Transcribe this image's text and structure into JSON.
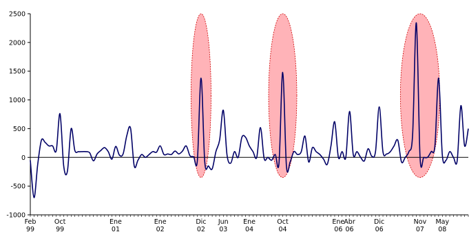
{
  "chart_data": {
    "type": "line",
    "title": "",
    "xlabel": "",
    "ylabel": "",
    "ylim": [
      -1000,
      2500
    ],
    "yticks": [
      -1000,
      -500,
      0,
      500,
      1000,
      1500,
      2000,
      2500
    ],
    "x_range": [
      "1999-02",
      "2008-12"
    ],
    "x_tick_labels": [
      {
        "text": "Feb",
        "sub": "99",
        "date": "1999-02"
      },
      {
        "text": "Oct",
        "sub": "99",
        "date": "1999-10"
      },
      {
        "text": "Ene",
        "sub": "01",
        "date": "2001-01"
      },
      {
        "text": "Ene",
        "sub": "02",
        "date": "2002-01"
      },
      {
        "text": "Dic",
        "sub": "02",
        "date": "2002-12"
      },
      {
        "text": "Jun",
        "sub": "03",
        "date": "2003-06"
      },
      {
        "text": "Ene",
        "sub": "04",
        "date": "2004-01"
      },
      {
        "text": "Oct",
        "sub": "04",
        "date": "2004-10"
      },
      {
        "text": "Ene",
        "sub": "06",
        "date": "2006-01"
      },
      {
        "text": "Abr",
        "sub": "06",
        "date": "2006-04"
      },
      {
        "text": "Dic",
        "sub": "06",
        "date": "2006-12"
      },
      {
        "text": "Nov",
        "sub": "07",
        "date": "2007-11"
      },
      {
        "text": "May",
        "sub": "08",
        "date": "2008-05"
      }
    ],
    "series": [
      {
        "color": "#000066",
        "points": [
          [
            "1999-02",
            -50
          ],
          [
            "1999-03",
            -700
          ],
          [
            "1999-04",
            -120
          ],
          [
            "1999-05",
            300
          ],
          [
            "1999-06",
            260
          ],
          [
            "1999-07",
            200
          ],
          [
            "1999-08",
            200
          ],
          [
            "1999-09",
            120
          ],
          [
            "1999-10",
            760
          ],
          [
            "1999-11",
            -150
          ],
          [
            "1999-12",
            -240
          ],
          [
            "2000-01",
            500
          ],
          [
            "2000-02",
            120
          ],
          [
            "2000-03",
            100
          ],
          [
            "2000-04",
            100
          ],
          [
            "2000-05",
            100
          ],
          [
            "2000-06",
            80
          ],
          [
            "2000-07",
            -60
          ],
          [
            "2000-08",
            60
          ],
          [
            "2000-09",
            120
          ],
          [
            "2000-10",
            170
          ],
          [
            "2000-11",
            100
          ],
          [
            "2000-12",
            -30
          ],
          [
            "2001-01",
            190
          ],
          [
            "2001-02",
            40
          ],
          [
            "2001-03",
            60
          ],
          [
            "2001-04",
            380
          ],
          [
            "2001-05",
            510
          ],
          [
            "2001-06",
            -150
          ],
          [
            "2001-07",
            -50
          ],
          [
            "2001-08",
            50
          ],
          [
            "2001-09",
            0
          ],
          [
            "2001-10",
            50
          ],
          [
            "2001-11",
            100
          ],
          [
            "2001-12",
            90
          ],
          [
            "2002-01",
            200
          ],
          [
            "2002-02",
            50
          ],
          [
            "2002-03",
            60
          ],
          [
            "2002-04",
            50
          ],
          [
            "2002-05",
            110
          ],
          [
            "2002-06",
            60
          ],
          [
            "2002-07",
            110
          ],
          [
            "2002-08",
            200
          ],
          [
            "2002-09",
            30
          ],
          [
            "2002-10",
            10
          ],
          [
            "2002-11",
            -60
          ],
          [
            "2002-12",
            1380
          ],
          [
            "2003-01",
            -80
          ],
          [
            "2003-02",
            -150
          ],
          [
            "2003-03",
            -200
          ],
          [
            "2003-04",
            100
          ],
          [
            "2003-05",
            300
          ],
          [
            "2003-06",
            820
          ],
          [
            "2003-07",
            40
          ],
          [
            "2003-08",
            -100
          ],
          [
            "2003-09",
            100
          ],
          [
            "2003-10",
            0
          ],
          [
            "2003-11",
            350
          ],
          [
            "2003-12",
            350
          ],
          [
            "2004-01",
            200
          ],
          [
            "2004-02",
            100
          ],
          [
            "2004-03",
            0
          ],
          [
            "2004-04",
            520
          ],
          [
            "2004-05",
            -20
          ],
          [
            "2004-06",
            0
          ],
          [
            "2004-07",
            -50
          ],
          [
            "2004-08",
            50
          ],
          [
            "2004-09",
            -100
          ],
          [
            "2004-10",
            1480
          ],
          [
            "2004-11",
            -150
          ],
          [
            "2004-12",
            -80
          ],
          [
            "2005-01",
            100
          ],
          [
            "2005-02",
            50
          ],
          [
            "2005-03",
            100
          ],
          [
            "2005-04",
            370
          ],
          [
            "2005-05",
            -80
          ],
          [
            "2005-06",
            170
          ],
          [
            "2005-07",
            100
          ],
          [
            "2005-08",
            50
          ],
          [
            "2005-09",
            -30
          ],
          [
            "2005-10",
            -120
          ],
          [
            "2005-11",
            200
          ],
          [
            "2005-12",
            620
          ],
          [
            "2006-01",
            0
          ],
          [
            "2006-02",
            100
          ],
          [
            "2006-03",
            0
          ],
          [
            "2006-04",
            800
          ],
          [
            "2006-05",
            50
          ],
          [
            "2006-06",
            100
          ],
          [
            "2006-07",
            0
          ],
          [
            "2006-08",
            -60
          ],
          [
            "2006-09",
            150
          ],
          [
            "2006-10",
            20
          ],
          [
            "2006-11",
            100
          ],
          [
            "2006-12",
            880
          ],
          [
            "2007-01",
            100
          ],
          [
            "2007-02",
            60
          ],
          [
            "2007-03",
            100
          ],
          [
            "2007-04",
            200
          ],
          [
            "2007-05",
            300
          ],
          [
            "2007-06",
            -80
          ],
          [
            "2007-07",
            0
          ],
          [
            "2007-08",
            100
          ],
          [
            "2007-09",
            400
          ],
          [
            "2007-10",
            2340
          ],
          [
            "2007-11",
            0
          ],
          [
            "2007-12",
            0
          ],
          [
            "2008-01",
            0
          ],
          [
            "2008-02",
            100
          ],
          [
            "2008-03",
            200
          ],
          [
            "2008-04",
            1380
          ],
          [
            "2008-05",
            40
          ],
          [
            "2008-06",
            -50
          ],
          [
            "2008-07",
            100
          ],
          [
            "2008-08",
            0
          ],
          [
            "2008-09",
            -60
          ],
          [
            "2008-10",
            900
          ],
          [
            "2008-11",
            200
          ],
          [
            "2008-12",
            500
          ]
        ]
      }
    ],
    "highlights": [
      {
        "center": "2002-12",
        "color": "#ffb3b8",
        "edge": "#cc0000"
      },
      {
        "center": "2004-10",
        "color": "#ffb3b8",
        "edge": "#cc0000"
      },
      {
        "center": "2007-11",
        "color": "#ffb3b8",
        "edge": "#cc0000"
      }
    ],
    "grid": false,
    "legend": "none"
  }
}
